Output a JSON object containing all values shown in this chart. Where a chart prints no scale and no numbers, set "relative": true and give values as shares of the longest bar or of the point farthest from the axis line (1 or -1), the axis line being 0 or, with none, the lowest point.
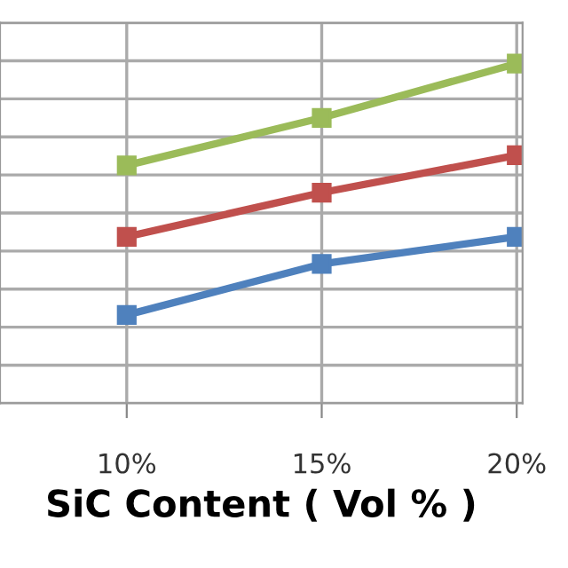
{
  "chart_data": {
    "type": "line",
    "xlabel": "SiC Content ( Vol % )",
    "categories": [
      "10%",
      "15%",
      "20%"
    ],
    "relative": true,
    "grid": true,
    "marker": "square",
    "line_style": "solid",
    "series": [
      {
        "color": "#9bbb59",
        "values": [
          0.7,
          0.84,
          1
        ]
      },
      {
        "color": "#c0504d",
        "values": [
          0.49,
          0.62,
          0.73
        ]
      },
      {
        "color": "#4f81bd",
        "values": [
          0.26,
          0.41,
          0.49
        ]
      }
    ]
  }
}
